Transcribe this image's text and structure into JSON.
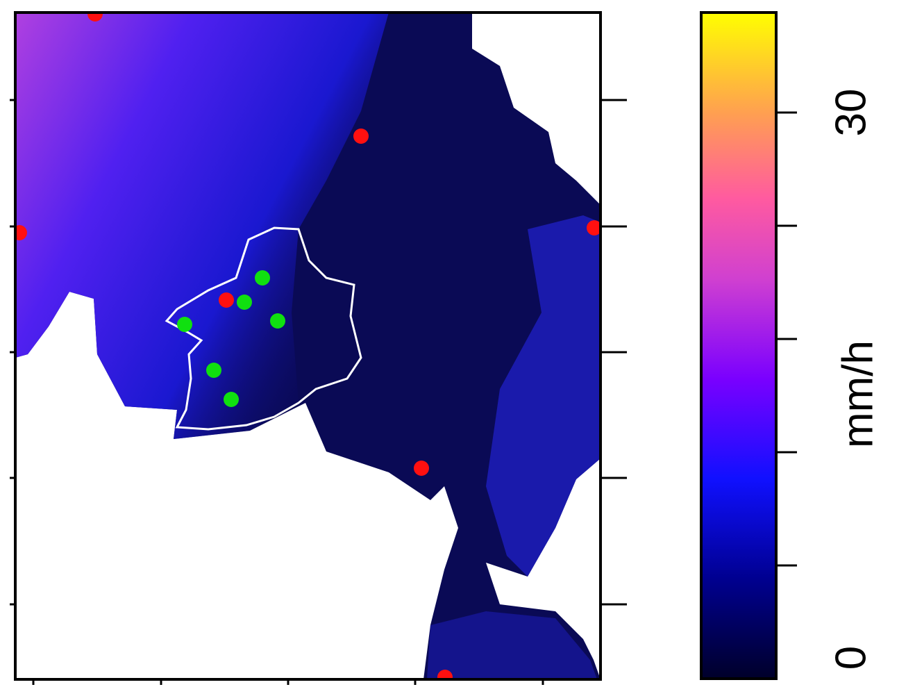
{
  "colorbar": {
    "lim": [
      0,
      35.3
    ],
    "ticks": [
      6,
      12,
      18,
      24,
      30
    ],
    "labeled_ticks": [
      0,
      30
    ],
    "label": "mm/h"
  }
}
